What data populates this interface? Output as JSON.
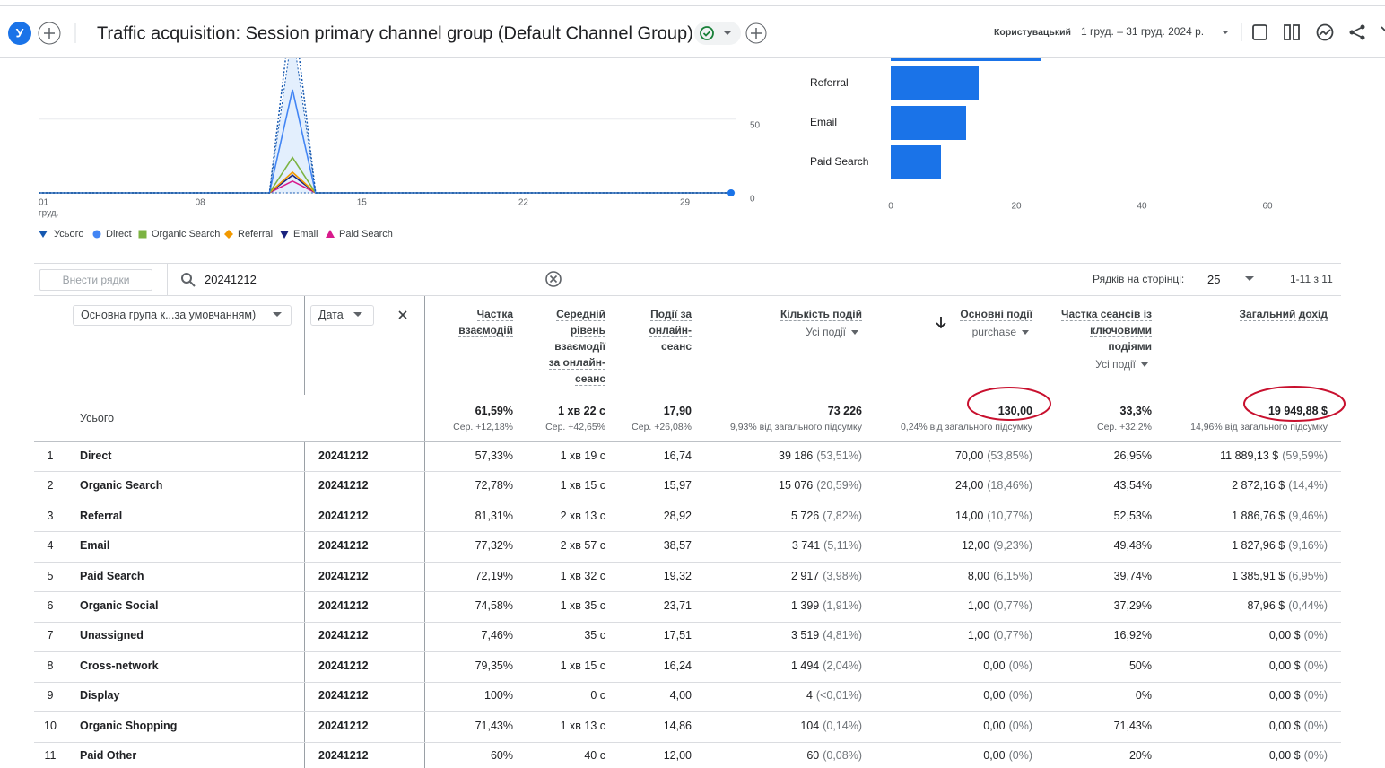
{
  "header": {
    "avatar": "У",
    "title": "Traffic acquisition: Session primary channel group (Default Channel Group)",
    "comparison_label": "Користувацький",
    "date_range": "1 груд. – 31 груд. 2024 р."
  },
  "line_chart": {
    "type": "line",
    "x": [
      1,
      2,
      3,
      4,
      5,
      6,
      7,
      8,
      9,
      10,
      11,
      12,
      13,
      14,
      15,
      16,
      17,
      18,
      19,
      20,
      21,
      22,
      23,
      24,
      25,
      26,
      27,
      28,
      29,
      30,
      31
    ],
    "xlim": [
      1,
      31
    ],
    "xticks": [
      {
        "value": 1,
        "label": "01"
      },
      {
        "value": 8,
        "label": "08"
      },
      15,
      22,
      29
    ],
    "x_month_label": "груд.",
    "ylim": [
      0,
      90
    ],
    "yticks": [
      0,
      50
    ],
    "grid": true,
    "series": [
      {
        "name": "Усього",
        "color": "#1558b0",
        "values": [
          0,
          0,
          0,
          0,
          0,
          0,
          0,
          0,
          0,
          0,
          0,
          130,
          0,
          0,
          0,
          0,
          0,
          0,
          0,
          0,
          0,
          0,
          0,
          0,
          0,
          0,
          0,
          0,
          0,
          0,
          0
        ]
      },
      {
        "name": "Direct",
        "color": "#4285f4",
        "values": [
          0,
          0,
          0,
          0,
          0,
          0,
          0,
          0,
          0,
          0,
          0,
          70,
          0,
          0,
          0,
          0,
          0,
          0,
          0,
          0,
          0,
          0,
          0,
          0,
          0,
          0,
          0,
          0,
          0,
          0,
          0
        ]
      },
      {
        "name": "Organic Search",
        "color": "#7cb342",
        "values": [
          0,
          0,
          0,
          0,
          0,
          0,
          0,
          0,
          0,
          0,
          0,
          24,
          0,
          0,
          0,
          0,
          0,
          0,
          0,
          0,
          0,
          0,
          0,
          0,
          0,
          0,
          0,
          0,
          0,
          0,
          0
        ]
      },
      {
        "name": "Referral",
        "color": "#f29900",
        "values": [
          0,
          0,
          0,
          0,
          0,
          0,
          0,
          0,
          0,
          0,
          0,
          14,
          0,
          0,
          0,
          0,
          0,
          0,
          0,
          0,
          0,
          0,
          0,
          0,
          0,
          0,
          0,
          0,
          0,
          0,
          0
        ]
      },
      {
        "name": "Email",
        "color": "#1a237e",
        "values": [
          0,
          0,
          0,
          0,
          0,
          0,
          0,
          0,
          0,
          0,
          0,
          12,
          0,
          0,
          0,
          0,
          0,
          0,
          0,
          0,
          0,
          0,
          0,
          0,
          0,
          0,
          0,
          0,
          0,
          0,
          0
        ]
      },
      {
        "name": "Paid Search",
        "color": "#d81b8c",
        "values": [
          0,
          0,
          0,
          0,
          0,
          0,
          0,
          0,
          0,
          0,
          0,
          8,
          0,
          0,
          0,
          0,
          0,
          0,
          0,
          0,
          0,
          0,
          0,
          0,
          0,
          0,
          0,
          0,
          0,
          0,
          0
        ]
      }
    ]
  },
  "bar_chart": {
    "type": "bar",
    "orientation": "horizontal",
    "categories": [
      null,
      "Referral",
      "Email",
      "Paid Search"
    ],
    "values": [
      24,
      14,
      12,
      8
    ],
    "color": "#1a73e8",
    "xlim": [
      0,
      70
    ],
    "xticks": [
      0,
      20,
      40,
      60
    ]
  },
  "table": {
    "toolbar": {
      "add_rows": "Внести рядки",
      "search": "20241212",
      "rows_per_page_label": "Рядків на сторінці:",
      "rows_per_page": "25",
      "range": "1-11 з 11"
    },
    "dimension_selector": "Основна група к...за умовчанням)",
    "date_selector": "Дата",
    "columns": [
      {
        "label": "Частка взаємодій"
      },
      {
        "label": "Середній рівень взаємодії за онлайн-сеанс"
      },
      {
        "label": "Події за онлайн-сеанс"
      },
      {
        "label": "Кількість подій",
        "sub": "Усі події"
      },
      {
        "label": "Основні події",
        "sub": "purchase"
      },
      {
        "label": "Частка сеансів із ключовими подіями",
        "sub": "Усі події"
      },
      {
        "label": "Загальний дохід"
      }
    ],
    "totals": {
      "label": "Усього",
      "values": [
        [
          "61,59%",
          "Сер. +12,18%"
        ],
        [
          "1 хв 22 с",
          "Сер. +42,65%"
        ],
        [
          "17,90",
          "Сер. +26,08%"
        ],
        [
          "73 226",
          "9,93% від загального підсумку"
        ],
        [
          "130,00",
          "0,24% від загального підсумку"
        ],
        [
          "33,3%",
          "Сер. +32,2%"
        ],
        [
          "19 949,88 $",
          "14,96% від загального підсумку"
        ]
      ]
    },
    "rows": [
      [
        "1",
        "Direct",
        "20241212",
        "57,33%",
        "1 хв 19 с",
        "16,74",
        "39 186",
        "(53,51%)",
        "70,00",
        "(53,85%)",
        "26,95%",
        "11 889,13 $",
        "(59,59%)"
      ],
      [
        "2",
        "Organic Search",
        "20241212",
        "72,78%",
        "1 хв 15 с",
        "15,97",
        "15 076",
        "(20,59%)",
        "24,00",
        "(18,46%)",
        "43,54%",
        "2 872,16 $",
        "(14,4%)"
      ],
      [
        "3",
        "Referral",
        "20241212",
        "81,31%",
        "2 хв 13 с",
        "28,92",
        "5 726",
        "(7,82%)",
        "14,00",
        "(10,77%)",
        "52,53%",
        "1 886,76 $",
        "(9,46%)"
      ],
      [
        "4",
        "Email",
        "20241212",
        "77,32%",
        "2 хв 57 с",
        "38,57",
        "3 741",
        "(5,11%)",
        "12,00",
        "(9,23%)",
        "49,48%",
        "1 827,96 $",
        "(9,16%)"
      ],
      [
        "5",
        "Paid Search",
        "20241212",
        "72,19%",
        "1 хв 32 с",
        "19,32",
        "2 917",
        "(3,98%)",
        "8,00",
        "(6,15%)",
        "39,74%",
        "1 385,91 $",
        "(6,95%)"
      ],
      [
        "6",
        "Organic Social",
        "20241212",
        "74,58%",
        "1 хв 35 с",
        "23,71",
        "1 399",
        "(1,91%)",
        "1,00",
        "(0,77%)",
        "37,29%",
        "87,96 $",
        "(0,44%)"
      ],
      [
        "7",
        "Unassigned",
        "20241212",
        "7,46%",
        "35 с",
        "17,51",
        "3 519",
        "(4,81%)",
        "1,00",
        "(0,77%)",
        "16,92%",
        "0,00 $",
        "(0%)"
      ],
      [
        "8",
        "Cross-network",
        "20241212",
        "79,35%",
        "1 хв 15 с",
        "16,24",
        "1 494",
        "(2,04%)",
        "0,00",
        "(0%)",
        "50%",
        "0,00 $",
        "(0%)"
      ],
      [
        "9",
        "Display",
        "20241212",
        "100%",
        "0 с",
        "4,00",
        "4",
        "(<0,01%)",
        "0,00",
        "(0%)",
        "0%",
        "0,00 $",
        "(0%)"
      ],
      [
        "10",
        "Organic Shopping",
        "20241212",
        "71,43%",
        "1 хв 13 с",
        "14,86",
        "104",
        "(0,14%)",
        "0,00",
        "(0%)",
        "71,43%",
        "0,00 $",
        "(0%)"
      ],
      [
        "11",
        "Paid Other",
        "20241212",
        "60%",
        "40 с",
        "12,00",
        "60",
        "(0,08%)",
        "0,00",
        "(0%)",
        "20%",
        "0,00 $",
        "(0%)"
      ]
    ]
  }
}
